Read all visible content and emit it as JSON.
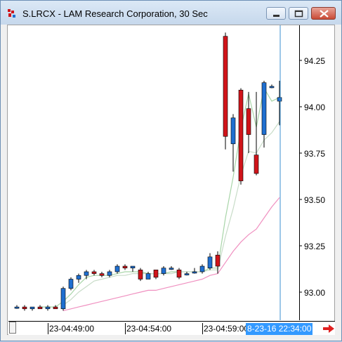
{
  "window": {
    "title": "S.LRCX - LAM Research Corporation, 30 Sec",
    "accent_color": "#6d8fb5"
  },
  "axis": {
    "price_labels": [
      "94.25",
      "94.00",
      "93.75",
      "93.50",
      "93.25",
      "93.00"
    ],
    "time_labels": [
      "23-04:49:00",
      "23-04:54:00",
      "23-04:59:00"
    ],
    "cursor_time": "8-23-16 22:34:00"
  },
  "chart_data": {
    "type": "candlestick",
    "symbol": "S.LRCX",
    "interval": "30 Sec",
    "ylim": [
      92.88,
      94.5
    ],
    "up_color": "#1f6fd0",
    "down_color": "#d0141a",
    "candles": [
      {
        "o": 92.92,
        "h": 92.93,
        "l": 92.91,
        "c": 92.92
      },
      {
        "o": 92.92,
        "h": 92.93,
        "l": 92.9,
        "c": 92.91
      },
      {
        "o": 92.91,
        "h": 92.92,
        "l": 92.9,
        "c": 92.92
      },
      {
        "o": 92.92,
        "h": 92.93,
        "l": 92.91,
        "c": 92.91
      },
      {
        "o": 92.91,
        "h": 92.93,
        "l": 92.9,
        "c": 92.92
      },
      {
        "o": 92.92,
        "h": 92.93,
        "l": 92.91,
        "c": 92.91
      },
      {
        "o": 92.91,
        "h": 93.03,
        "l": 92.9,
        "c": 93.02
      },
      {
        "o": 93.02,
        "h": 93.08,
        "l": 93.01,
        "c": 93.07
      },
      {
        "o": 93.07,
        "h": 93.1,
        "l": 93.05,
        "c": 93.09
      },
      {
        "o": 93.09,
        "h": 93.12,
        "l": 93.07,
        "c": 93.11
      },
      {
        "o": 93.11,
        "h": 93.12,
        "l": 93.09,
        "c": 93.1
      },
      {
        "o": 93.1,
        "h": 93.11,
        "l": 93.08,
        "c": 93.09
      },
      {
        "o": 93.09,
        "h": 93.12,
        "l": 93.08,
        "c": 93.11
      },
      {
        "o": 93.11,
        "h": 93.15,
        "l": 93.1,
        "c": 93.14
      },
      {
        "o": 93.14,
        "h": 93.15,
        "l": 93.12,
        "c": 93.13
      },
      {
        "o": 93.13,
        "h": 93.14,
        "l": 93.11,
        "c": 93.14
      },
      {
        "o": 93.12,
        "h": 93.13,
        "l": 93.06,
        "c": 93.07
      },
      {
        "o": 93.07,
        "h": 93.11,
        "l": 93.07,
        "c": 93.1
      },
      {
        "o": 93.12,
        "h": 93.12,
        "l": 93.07,
        "c": 93.08
      },
      {
        "o": 93.1,
        "h": 93.14,
        "l": 93.09,
        "c": 93.13
      },
      {
        "o": 93.13,
        "h": 93.14,
        "l": 93.12,
        "c": 93.13
      },
      {
        "o": 93.12,
        "h": 93.13,
        "l": 93.07,
        "c": 93.08
      },
      {
        "o": 93.1,
        "h": 93.11,
        "l": 93.09,
        "c": 93.1
      },
      {
        "o": 93.11,
        "h": 93.13,
        "l": 93.1,
        "c": 93.11
      },
      {
        "o": 93.11,
        "h": 93.15,
        "l": 93.1,
        "c": 93.14
      },
      {
        "o": 93.13,
        "h": 93.21,
        "l": 93.12,
        "c": 93.19
      },
      {
        "o": 93.2,
        "h": 93.22,
        "l": 93.1,
        "c": 93.14
      },
      {
        "o": 94.38,
        "h": 94.4,
        "l": 93.77,
        "c": 93.84
      },
      {
        "o": 93.8,
        "h": 93.96,
        "l": 93.65,
        "c": 93.94
      },
      {
        "o": 94.09,
        "h": 94.1,
        "l": 93.58,
        "c": 93.6
      },
      {
        "o": 93.99,
        "h": 94.08,
        "l": 93.75,
        "c": 93.85
      },
      {
        "o": 93.74,
        "h": 94.08,
        "l": 93.63,
        "c": 93.64
      },
      {
        "o": 93.85,
        "h": 94.14,
        "l": 93.78,
        "c": 94.13
      },
      {
        "o": 94.11,
        "h": 94.12,
        "l": 94.1,
        "c": 94.11
      },
      {
        "o": 94.03,
        "h": 94.14,
        "l": 93.9,
        "c": 94.05
      }
    ],
    "series": [
      {
        "color": "#a8d5a8",
        "values": [
          null,
          null,
          null,
          92.92,
          92.92,
          92.92,
          92.95,
          92.99,
          93.04,
          93.08,
          93.09,
          93.09,
          93.09,
          93.1,
          93.11,
          93.11,
          93.11,
          93.1,
          93.1,
          93.1,
          93.11,
          93.11,
          93.11,
          93.11,
          93.11,
          93.13,
          93.13,
          93.4,
          93.62,
          93.88,
          94.07,
          93.89,
          94.1,
          94.03,
          94.05
        ]
      },
      {
        "color": "#c8dcc8",
        "values": [
          null,
          null,
          null,
          null,
          null,
          null,
          92.93,
          92.96,
          93.0,
          93.03,
          93.06,
          93.07,
          93.08,
          93.09,
          93.09,
          93.1,
          93.1,
          93.1,
          93.1,
          93.1,
          93.1,
          93.11,
          93.11,
          93.11,
          93.11,
          93.12,
          93.12,
          93.3,
          93.45,
          93.63,
          93.76,
          93.75,
          93.82,
          93.86,
          93.92
        ]
      },
      {
        "color": "#f090c0",
        "values": [
          null,
          null,
          null,
          null,
          null,
          null,
          92.9,
          92.91,
          92.92,
          92.93,
          92.94,
          92.95,
          92.96,
          92.97,
          92.98,
          92.99,
          93.0,
          93.01,
          93.01,
          93.02,
          93.03,
          93.04,
          93.05,
          93.06,
          93.07,
          93.09,
          93.1,
          93.16,
          93.22,
          93.27,
          93.31,
          93.34,
          93.4,
          93.46,
          93.51
        ]
      }
    ]
  }
}
